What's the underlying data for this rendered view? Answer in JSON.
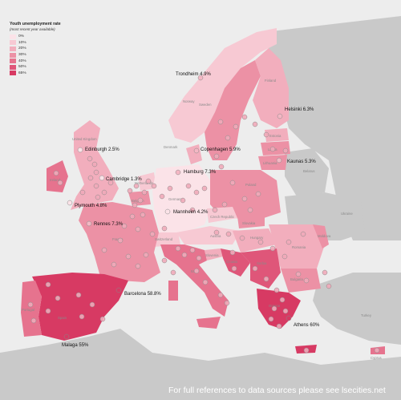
{
  "legend": {
    "title": "Youth unemployment rate",
    "subtitle": "(most recent year available)",
    "items": [
      {
        "label": "0%",
        "color": "#fbe3e8"
      },
      {
        "label": "10%",
        "color": "#f7c9d3"
      },
      {
        "label": "20%",
        "color": "#f2aebd"
      },
      {
        "label": "30%",
        "color": "#ec91a5"
      },
      {
        "label": "40%",
        "color": "#e6738e"
      },
      {
        "label": "50%",
        "color": "#df5679"
      },
      {
        "label": "65%",
        "color": "#d73a63"
      }
    ]
  },
  "cities": [
    {
      "name": "Trondheim",
      "value": "4.9%"
    },
    {
      "name": "Helsinki",
      "value": "6.3%"
    },
    {
      "name": "Edinburgh",
      "value": "2.5%"
    },
    {
      "name": "Copenhagen",
      "value": "5.9%"
    },
    {
      "name": "Kaunas",
      "value": "5.3%"
    },
    {
      "name": "Cambridge",
      "value": "1.3%"
    },
    {
      "name": "Hamburg",
      "value": "7.3%"
    },
    {
      "name": "Plymouth",
      "value": "4.8%"
    },
    {
      "name": "Mannheim",
      "value": "4.2%"
    },
    {
      "name": "Rennes",
      "value": "7.3%"
    },
    {
      "name": "Barcelona",
      "value": "58.8%"
    },
    {
      "name": "Athens",
      "value": "60%"
    },
    {
      "name": "Malaga",
      "value": "55%"
    }
  ],
  "countries": [
    "Norway",
    "Sweden",
    "Finland",
    "Estonia",
    "Latvia",
    "Lithuania",
    "United Kingdom",
    "Ireland",
    "Denmark",
    "Netherlands",
    "Belgium",
    "Germany",
    "Poland",
    "Belarus",
    "Ukraine",
    "Czech Republic",
    "Slovakia",
    "France",
    "Switzerland",
    "Austria",
    "Hungary",
    "Romania",
    "Moldova",
    "Italy",
    "Slovenia",
    "Croatia",
    "Serbia",
    "Bulgaria",
    "Spain",
    "Portugal",
    "Greece",
    "Turkey",
    "Cyprus"
  ],
  "footer": "For full references to data sources please see lsecities.net"
}
